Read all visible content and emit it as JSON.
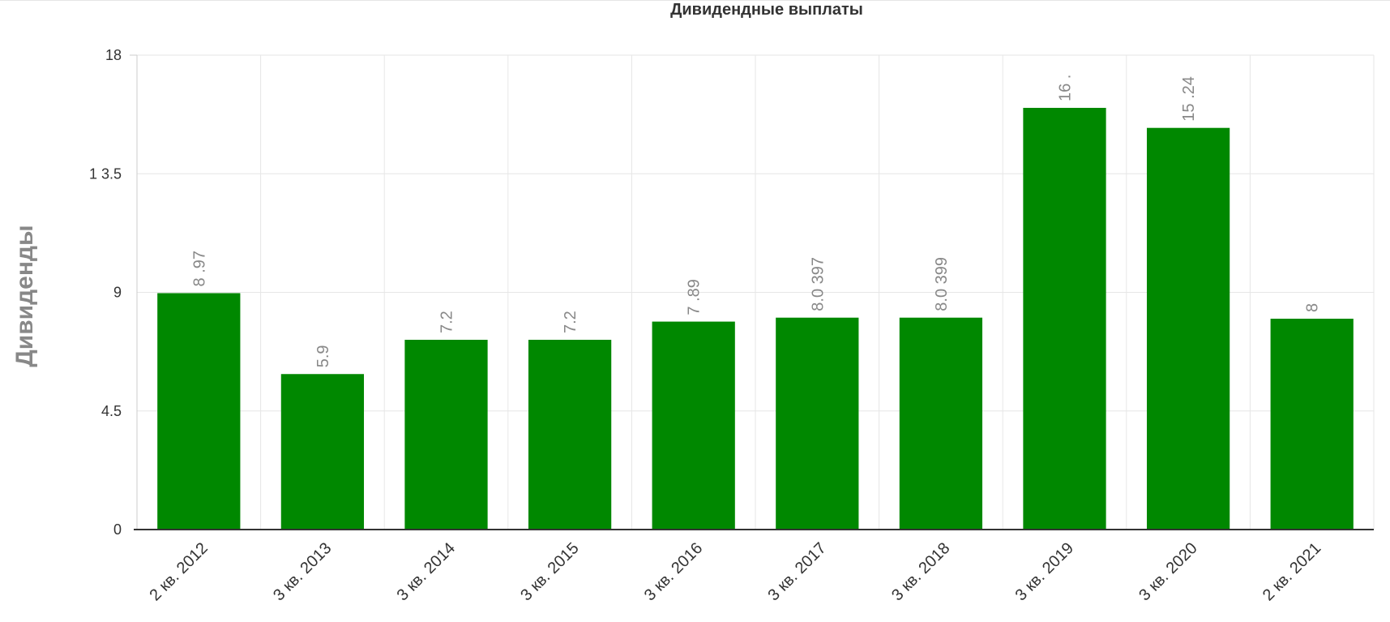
{
  "chart_data": {
    "type": "bar",
    "title": "Дивидендные выплаты",
    "xlabel": "",
    "ylabel": "Дивиденды",
    "categories": [
      "2 кв. 2012",
      "3 кв. 2013",
      "3 кв. 2014",
      "3 кв. 2015",
      "3 кв. 2016",
      "3 кв. 2017",
      "3 кв. 2018",
      "3 кв. 2019",
      "3 кв. 2020",
      "2 кв. 2021"
    ],
    "values": [
      8.97,
      5.9,
      7.2,
      7.2,
      7.89,
      8.0397,
      8.0399,
      16.0,
      15.24,
      8.0
    ],
    "data_labels": [
      "8 .97",
      "5.9",
      "7.2",
      "7.2",
      "7 .89",
      "8.0 397",
      "8.0 399",
      "16 .",
      "15 .24",
      "8"
    ],
    "yticks": [
      0,
      4.5,
      9,
      13.5,
      18
    ],
    "ytick_labels": [
      "0",
      "4.5",
      "9",
      "1 3.5",
      "18"
    ],
    "ylim": [
      0,
      18
    ],
    "grid": true,
    "legend": "none",
    "bar_color": "#008800",
    "grid_color": "#e6e6e6",
    "axis_color": "#333333",
    "label_color": "#888888",
    "tick_label_color": "#333333"
  }
}
